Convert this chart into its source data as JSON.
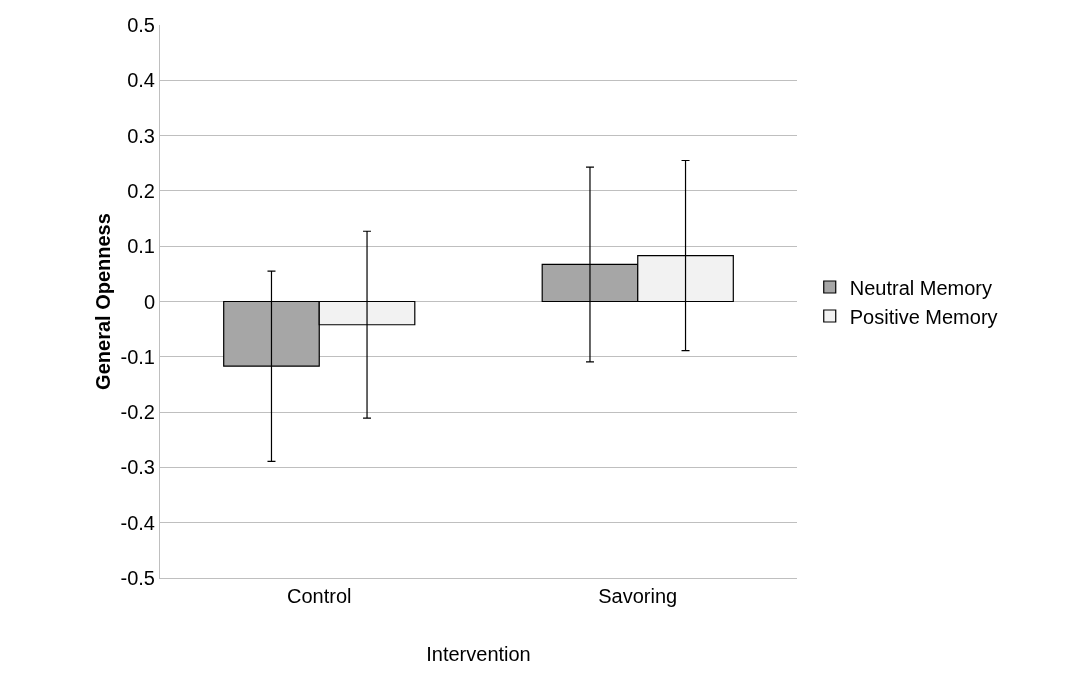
{
  "chart_data": {
    "type": "bar",
    "xlabel": "Intervention",
    "ylabel": "General Openness",
    "categories": [
      "Control",
      "Savoring"
    ],
    "series": [
      {
        "name": "Neutral Memory",
        "color": "#a6a6a6",
        "values": [
          -0.117,
          0.067
        ],
        "errors": [
          0.172,
          0.176
        ]
      },
      {
        "name": "Positive Memory",
        "color": "#f2f2f2",
        "values": [
          -0.042,
          0.083
        ],
        "errors": [
          0.169,
          0.172
        ]
      }
    ],
    "ylim": [
      -0.5,
      0.5
    ],
    "yticks": [
      -0.5,
      -0.4,
      -0.3,
      -0.2,
      -0.1,
      0,
      0.1,
      0.2,
      0.3,
      0.4,
      0.5
    ],
    "grid": "y",
    "legend": "right"
  }
}
